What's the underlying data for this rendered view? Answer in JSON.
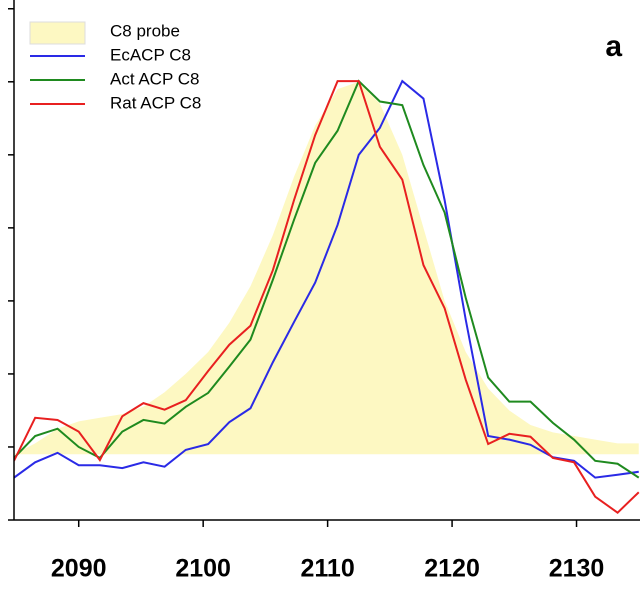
{
  "chart_data": {
    "type": "line",
    "panel_label": "a",
    "x": [
      2084.8,
      2086.5,
      2088.3,
      2090.0,
      2091.7,
      2093.5,
      2095.2,
      2096.9,
      2098.6,
      2100.4,
      2102.1,
      2103.8,
      2105.6,
      2107.3,
      2109.0,
      2110.8,
      2112.5,
      2114.2,
      2116.0,
      2117.7,
      2119.4,
      2121.1,
      2122.9,
      2124.6,
      2126.3,
      2128.1,
      2129.8,
      2131.5,
      2133.3,
      2135.0
    ],
    "series": [
      {
        "name": "C8 probe",
        "style": "area",
        "color": "#fdf8c2",
        "values": [
          0.9,
          1.05,
          1.25,
          1.35,
          1.4,
          1.45,
          1.55,
          1.75,
          2.0,
          2.3,
          2.7,
          3.2,
          3.9,
          4.7,
          5.4,
          5.9,
          6.0,
          5.7,
          5.0,
          4.0,
          3.0,
          2.3,
          1.8,
          1.5,
          1.3,
          1.2,
          1.15,
          1.1,
          1.05,
          1.05
        ]
      },
      {
        "name": "EcACP C8",
        "style": "line",
        "color": "#2a2ae6",
        "values": [
          0.58,
          0.79,
          0.92,
          0.75,
          0.75,
          0.71,
          0.79,
          0.73,
          0.96,
          1.04,
          1.34,
          1.53,
          2.16,
          2.71,
          3.25,
          4.04,
          5.0,
          5.37,
          6.01,
          5.77,
          4.38,
          2.74,
          1.15,
          1.1,
          1.03,
          0.86,
          0.81,
          0.58,
          0.62,
          0.66
        ]
      },
      {
        "name": "Act ACP C8",
        "style": "line",
        "color": "#1f8a1f",
        "values": [
          0.85,
          1.15,
          1.25,
          1.0,
          0.85,
          1.21,
          1.37,
          1.32,
          1.55,
          1.74,
          2.1,
          2.47,
          3.29,
          4.11,
          4.89,
          5.33,
          6.01,
          5.73,
          5.68,
          4.86,
          4.21,
          3.04,
          1.95,
          1.62,
          1.62,
          1.33,
          1.1,
          0.81,
          0.77,
          0.58
        ]
      },
      {
        "name": "Rat ACP C8",
        "style": "line",
        "color": "#e82020",
        "values": [
          0.81,
          1.4,
          1.37,
          1.21,
          0.82,
          1.42,
          1.6,
          1.51,
          1.64,
          2.04,
          2.4,
          2.66,
          3.42,
          4.38,
          5.27,
          6.01,
          6.01,
          5.11,
          4.66,
          3.49,
          2.9,
          1.92,
          1.04,
          1.18,
          1.14,
          0.85,
          0.79,
          0.32,
          0.1,
          0.38
        ]
      }
    ],
    "xlim": [
      2084.8,
      2135.1
    ],
    "xticks": [
      2090,
      2100,
      2110,
      2120,
      2130
    ],
    "ylim": [
      0,
      7.12
    ],
    "yticks": [
      0,
      1,
      2,
      3,
      4,
      5,
      6,
      7
    ]
  }
}
